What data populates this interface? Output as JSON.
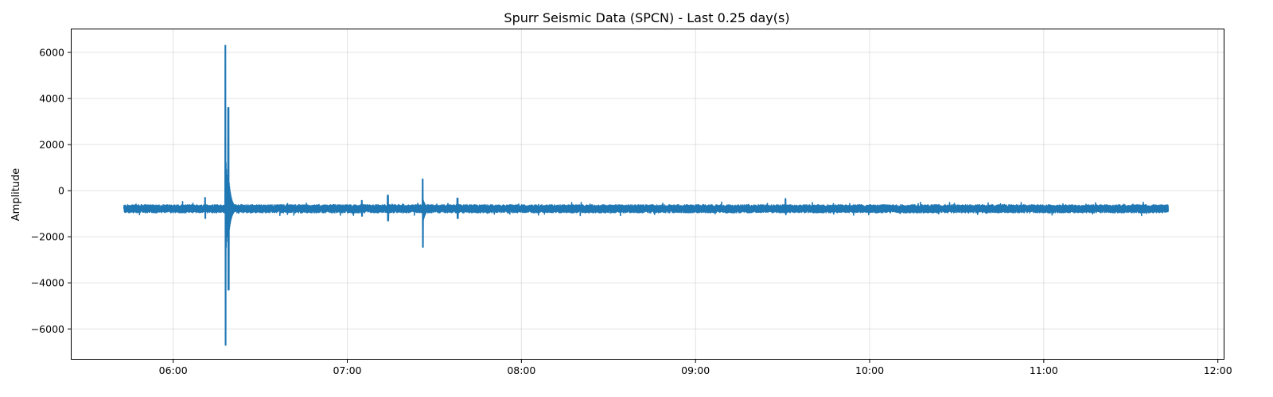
{
  "chart_data": {
    "type": "line",
    "title": "Spurr Seismic Data (SPCN) - Last 0.25 day(s)",
    "xlabel": "",
    "ylabel": "Amplitude",
    "xlim": [
      "05:25",
      "12:02"
    ],
    "ylim": [
      -7300,
      7000
    ],
    "x_ticks": [
      "06:00",
      "07:00",
      "08:00",
      "09:00",
      "10:00",
      "11:00",
      "12:00"
    ],
    "y_ticks": [
      6000,
      4000,
      2000,
      0,
      -2000,
      -4000,
      -6000
    ],
    "y_tick_labels": [
      "6000",
      "4000",
      "2000",
      "0",
      "−2000",
      "−4000",
      "−6000"
    ],
    "grid": true,
    "line_color": "#1f77b4",
    "series": [
      {
        "x_start": "05:43",
        "x_end": "11:43",
        "baseline": -780,
        "noise_band": [
          -960,
          -610
        ],
        "events": [
          {
            "time": "06:11",
            "max": -300,
            "min": -1200
          },
          {
            "time": "06:18",
            "max": 6300,
            "min": -6700
          },
          {
            "time": "06:19",
            "max": 3600,
            "min": -4300
          },
          {
            "time": "07:05",
            "max": -430,
            "min": -1100
          },
          {
            "time": "07:14",
            "max": -200,
            "min": -1300
          },
          {
            "time": "07:26",
            "max": 500,
            "min": -2450
          },
          {
            "time": "07:38",
            "max": -330,
            "min": -1200
          },
          {
            "time": "09:31",
            "max": -350,
            "min": -1000
          }
        ]
      }
    ]
  }
}
